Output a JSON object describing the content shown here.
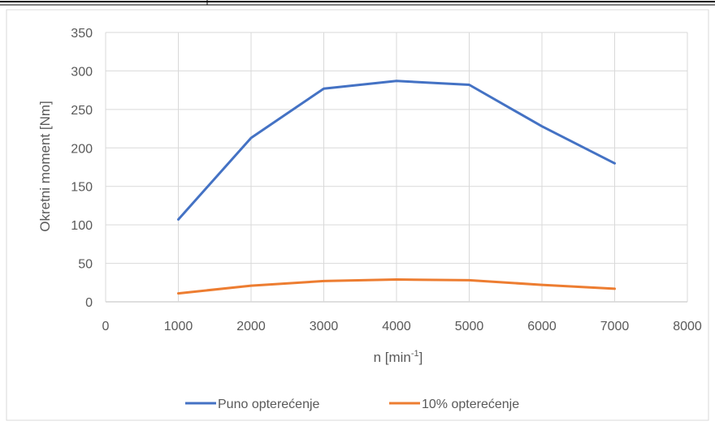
{
  "chart_data": {
    "type": "line",
    "title": "",
    "xlabel_base": "n [min",
    "xlabel_sup": "-1",
    "xlabel_end": "]",
    "ylabel": "Okretni moment [Nm]",
    "xlim": [
      0,
      8000
    ],
    "ylim": [
      0,
      350
    ],
    "x_ticks": [
      0,
      1000,
      2000,
      3000,
      4000,
      5000,
      6000,
      7000,
      8000
    ],
    "y_ticks": [
      0,
      50,
      100,
      150,
      200,
      250,
      300,
      350
    ],
    "grid": true,
    "legend_position": "bottom",
    "x": [
      1000,
      2000,
      3000,
      4000,
      5000,
      6000,
      7000
    ],
    "series": [
      {
        "name": "Puno opterećenje",
        "color": "#4472c4",
        "values": [
          107,
          213,
          277,
          287,
          282,
          228,
          180
        ]
      },
      {
        "name": "10% opterećenje",
        "color": "#ed7d31",
        "values": [
          11,
          21,
          27,
          29,
          28,
          22,
          17
        ]
      }
    ]
  }
}
